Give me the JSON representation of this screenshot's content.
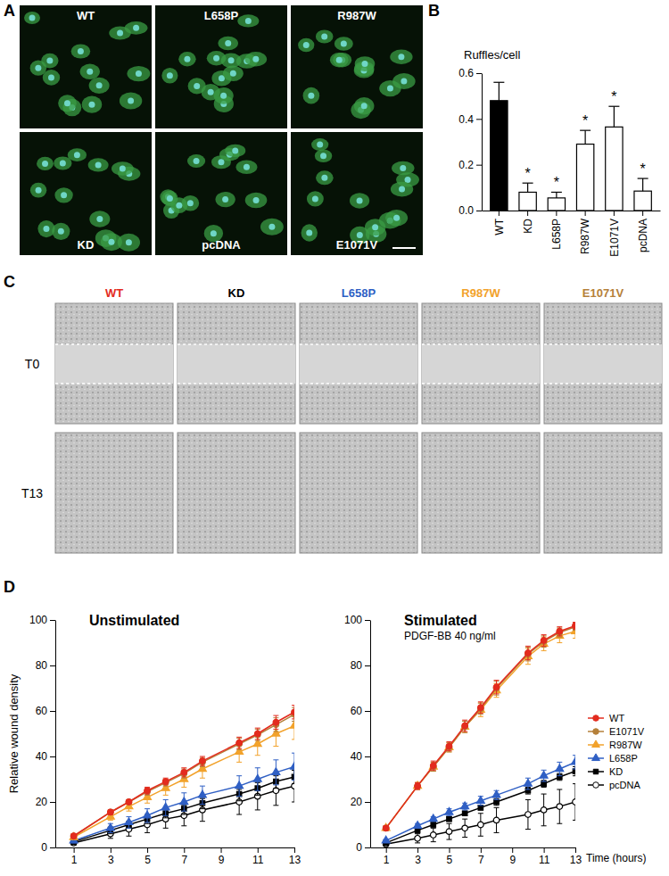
{
  "panel_labels": [
    "A",
    "B",
    "C",
    "D"
  ],
  "micrographs": {
    "labels_top": [
      "WT",
      "L658P",
      "R987W"
    ],
    "labels_bottom": [
      "KD",
      "pcDNA",
      "E1071V"
    ]
  },
  "wound_images": {
    "columns": [
      {
        "label": "WT",
        "color": "#e32b1e"
      },
      {
        "label": "KD",
        "color": "#000000"
      },
      {
        "label": "L658P",
        "color": "#2f5fc4"
      },
      {
        "label": "R987W",
        "color": "#f2a22b"
      },
      {
        "label": "E1071V",
        "color": "#b5803a"
      }
    ],
    "rows": [
      "T0",
      "T13"
    ]
  },
  "chart_data": [
    {
      "type": "bar",
      "y_label": "Ruffles/cell",
      "categories": [
        "WT",
        "KD",
        "L658P",
        "R987W",
        "E1071V",
        "pcDNA"
      ],
      "values": [
        0.48,
        0.08,
        0.055,
        0.29,
        0.365,
        0.085
      ],
      "errors": [
        0.08,
        0.04,
        0.025,
        0.06,
        0.09,
        0.055
      ],
      "colors": [
        "#000000",
        "#ffffff",
        "#ffffff",
        "#ffffff",
        "#ffffff",
        "#ffffff"
      ],
      "ylim": [
        0,
        0.6
      ],
      "yticks": [
        {
          "value": 0,
          "label": "0.0"
        },
        0.2,
        0.4,
        0.6
      ],
      "annotations": [
        {
          "x": "KD",
          "text": "*"
        },
        {
          "x": "L658P",
          "text": "*"
        },
        {
          "x": "R987W",
          "text": "*"
        },
        {
          "x": "E1071V",
          "text": "*"
        },
        {
          "x": "pcDNA",
          "text": "*"
        }
      ]
    },
    {
      "type": "line",
      "title": "Unstimulated",
      "y_label": "Relative wound density",
      "x": [
        1,
        3,
        4,
        5,
        6,
        7,
        8,
        10,
        11,
        12,
        13
      ],
      "xlim": [
        0,
        13
      ],
      "xticks": [
        1,
        3,
        5,
        7,
        9,
        11,
        13
      ],
      "ylim": [
        0,
        100
      ],
      "yticks": [
        0,
        20,
        40,
        60,
        80,
        100
      ],
      "series": [
        {
          "name": "WT",
          "color": "#e32b1e",
          "marker": "circle",
          "values": [
            5,
            15.5,
            20,
            25,
            29,
            33,
            38,
            46,
            50,
            55,
            59.5
          ],
          "errors": [
            1,
            1,
            1,
            1.5,
            1.5,
            2,
            2,
            2.5,
            2.5,
            3,
            3
          ]
        },
        {
          "name": "E1071V",
          "color": "#b5803a",
          "marker": "circle",
          "values": [
            5,
            15.5,
            20,
            24.5,
            28.5,
            32.5,
            37.5,
            45.5,
            49.5,
            54,
            58.5
          ],
          "errors": [
            1,
            1,
            1,
            1.5,
            1.5,
            2,
            2,
            2.5,
            2.5,
            3,
            3
          ]
        },
        {
          "name": "R987W",
          "color": "#f2a22b",
          "marker": "triangle",
          "values": [
            4.5,
            13.5,
            18,
            22,
            26,
            30,
            34.5,
            42,
            45.5,
            50,
            53.5
          ],
          "errors": [
            1,
            1.5,
            2,
            2.5,
            3,
            3.5,
            4,
            4.5,
            5,
            5.5,
            6
          ]
        },
        {
          "name": "L658P",
          "color": "#2f5fc4",
          "marker": "triangle",
          "values": [
            3,
            8.5,
            11,
            14,
            17.5,
            20,
            23,
            27,
            30,
            33,
            35.5
          ],
          "errors": [
            1,
            2,
            2.5,
            3,
            3.5,
            4,
            4,
            4.5,
            5,
            5.5,
            6
          ]
        },
        {
          "name": "KD",
          "color": "#000000",
          "marker": "square",
          "values": [
            2.5,
            7.5,
            10,
            12.5,
            15,
            17,
            19.5,
            23.5,
            26,
            29,
            31
          ],
          "errors": [
            1,
            1.5,
            1.5,
            2,
            2,
            2.5,
            2.5,
            3,
            3,
            3,
            3
          ]
        },
        {
          "name": "pcDNA",
          "color": "#000000",
          "marker": "circle-open",
          "values": [
            2,
            6,
            8,
            10,
            12.5,
            14,
            16.5,
            20,
            22.5,
            25,
            27
          ],
          "errors": [
            1,
            2,
            3,
            3.5,
            4,
            4.5,
            5,
            5.5,
            6,
            6.5,
            7
          ]
        }
      ]
    },
    {
      "type": "line",
      "title": "Stimulated",
      "subtitle": "PDGF-BB 40 ng/ml",
      "x_label": "Time (hours)",
      "x": [
        1,
        3,
        4,
        5,
        6,
        7,
        8,
        10,
        11,
        12,
        13
      ],
      "xlim": [
        0,
        13
      ],
      "xticks": [
        1,
        3,
        5,
        7,
        9,
        11,
        13
      ],
      "ylim": [
        0,
        100
      ],
      "yticks": [
        0,
        20,
        40,
        60,
        80,
        100
      ],
      "legend": "right",
      "series": [
        {
          "name": "WT",
          "color": "#e32b1e",
          "marker": "circle",
          "values": [
            8.5,
            27,
            36,
            44.5,
            53.5,
            61.5,
            70.5,
            85.5,
            91,
            95,
            97.5
          ],
          "errors": [
            1,
            1.5,
            2,
            2,
            2.5,
            2.5,
            3,
            3,
            2.5,
            2,
            1.5
          ]
        },
        {
          "name": "E1071V",
          "color": "#b5803a",
          "marker": "circle",
          "values": [
            8.5,
            27,
            35.5,
            44,
            53,
            61,
            70,
            85,
            90.5,
            94.5,
            97
          ],
          "errors": [
            1,
            1.5,
            2,
            2,
            2.5,
            2.5,
            3,
            3,
            2.5,
            2,
            1.5
          ]
        },
        {
          "name": "R987W",
          "color": "#f2a22b",
          "marker": "triangle",
          "values": [
            8.5,
            27,
            35.5,
            44,
            53,
            60.5,
            69,
            84,
            89.5,
            93,
            95
          ],
          "errors": [
            1,
            1.5,
            2,
            2,
            2.5,
            3,
            3,
            3.5,
            3,
            3,
            3
          ]
        },
        {
          "name": "L658P",
          "color": "#2f5fc4",
          "marker": "triangle",
          "values": [
            3,
            9.5,
            12.5,
            15.5,
            18,
            20.5,
            23,
            28,
            31.5,
            34.5,
            37.5
          ],
          "errors": [
            0.5,
            1,
            1,
            1.5,
            1.5,
            2,
            2,
            2.5,
            2.5,
            3,
            3
          ]
        },
        {
          "name": "KD",
          "color": "#000000",
          "marker": "square",
          "values": [
            2,
            7.5,
            10,
            12.5,
            15,
            17.5,
            20,
            25,
            28,
            31,
            33.5
          ],
          "errors": [
            0.5,
            0.5,
            1,
            1,
            1,
            1,
            1.5,
            1.5,
            1.5,
            1.5,
            2
          ]
        },
        {
          "name": "pcDNA",
          "color": "#000000",
          "marker": "circle-open",
          "values": [
            1.5,
            4,
            5.5,
            7,
            8.5,
            10,
            12,
            14.5,
            16.5,
            18,
            20
          ],
          "errors": [
            1,
            2,
            3,
            3.5,
            4,
            5,
            5.5,
            6.5,
            7,
            7.5,
            8
          ]
        }
      ]
    }
  ]
}
